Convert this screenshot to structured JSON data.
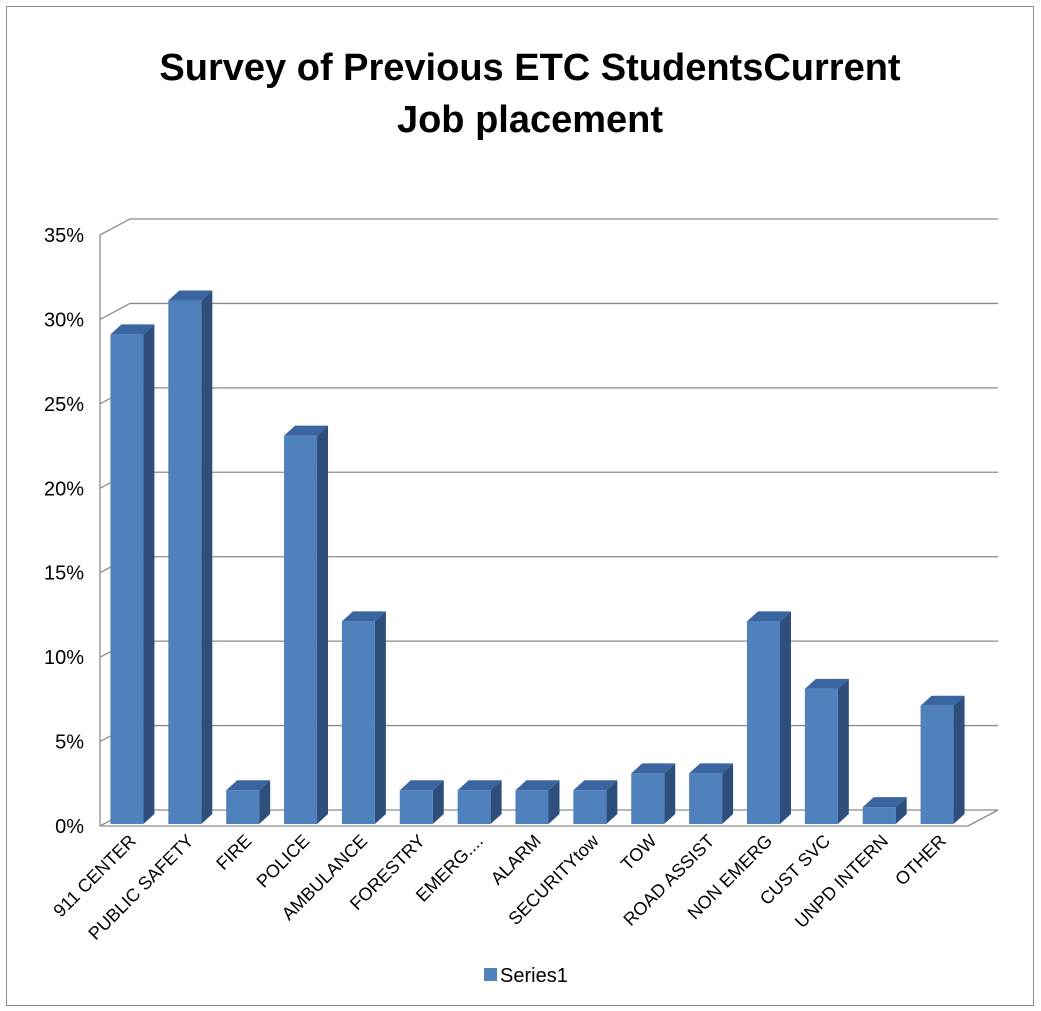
{
  "chart_data": {
    "type": "bar",
    "title": "Survey of Previous ETC StudentsCurrent Job placement",
    "categories": [
      "911 CENTER",
      "PUBLIC SAFETY",
      "FIRE",
      "POLICE",
      "AMBULANCE",
      "FORESTRY",
      "EMERG....",
      "ALARM",
      "SECURITYtow",
      "TOW",
      "ROAD ASSIST",
      "NON EMERG",
      "CUST SVC",
      "UNPD INTERN",
      "OTHER"
    ],
    "series": [
      {
        "name": "Series1",
        "values": [
          0.29,
          0.31,
          0.02,
          0.23,
          0.12,
          0.02,
          0.02,
          0.02,
          0.02,
          0.03,
          0.03,
          0.12,
          0.08,
          0.01,
          0.07
        ]
      }
    ],
    "y_ticks": [
      "0%",
      "5%",
      "10%",
      "15%",
      "20%",
      "25%",
      "30%",
      "35%"
    ],
    "ylim": [
      0,
      0.35
    ],
    "grid": true,
    "legend_position": "bottom",
    "three_d": true,
    "colors": {
      "bar_front": "#4F81BD",
      "bar_side": "#2E4F7C",
      "bar_top": "#3A65A0",
      "grid": "#8c8c8c"
    }
  }
}
